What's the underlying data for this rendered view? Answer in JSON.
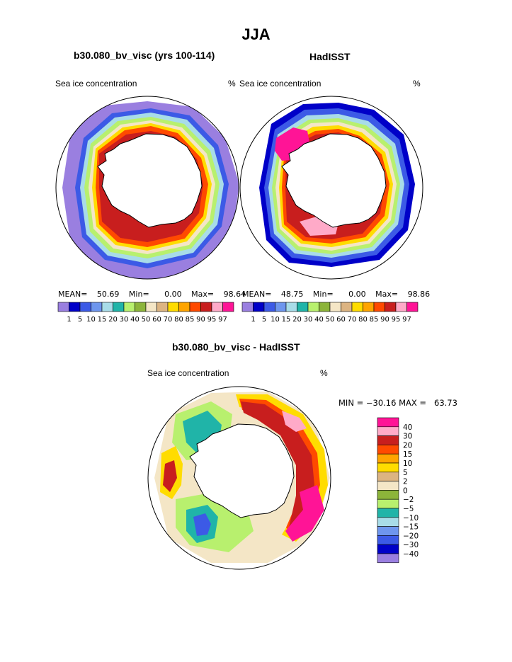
{
  "page": {
    "title": "JJA",
    "left_panel": {
      "case_label": "b30.080_bv_visc (yrs 100-114)",
      "variable": "Sea ice concentration",
      "units": "%",
      "stats": {
        "mean_label": "MEAN=",
        "mean": "50.69",
        "min_label": "Min=",
        "min": "0.00",
        "max_label": "Max=",
        "max": "98.64"
      }
    },
    "right_panel": {
      "case_label": "HadISST",
      "variable": "Sea ice concentration",
      "units": "%",
      "stats": {
        "mean_label": "MEAN=",
        "mean": "48.75",
        "min_label": "Min=",
        "min": "0.00",
        "max_label": "Max=",
        "max": "98.86"
      }
    },
    "diff_panel": {
      "case_label": "b30.080_bv_visc - HadISST",
      "variable": "Sea ice concentration",
      "units": "%",
      "minmax_text": "MIN = −30.16 MAX =   63.73"
    }
  },
  "chart_data": [
    {
      "type": "polar-contour-map",
      "title": "b30.080_bv_visc (yrs 100-114)",
      "variable": "Sea ice concentration (%)",
      "levels": [
        "1",
        "5",
        "10",
        "15",
        "20",
        "30",
        "40",
        "50",
        "60",
        "70",
        "80",
        "85",
        "90",
        "95",
        "97"
      ],
      "colors": [
        "#9a7fe0",
        "#0000c8",
        "#3c5ae6",
        "#6e96ee",
        "#a8dce8",
        "#20b4a8",
        "#b8f06e",
        "#8cb43a",
        "#f4e6c6",
        "#dcb482",
        "#ffdc00",
        "#ffa400",
        "#ff4a00",
        "#c81e1e",
        "#ffaac8",
        "#ff1496"
      ],
      "stats": {
        "mean": 50.69,
        "min": 0.0,
        "max": 98.64
      }
    },
    {
      "type": "polar-contour-map",
      "title": "HadISST",
      "variable": "Sea ice concentration (%)",
      "levels": [
        "1",
        "5",
        "10",
        "15",
        "20",
        "30",
        "40",
        "50",
        "60",
        "70",
        "80",
        "85",
        "90",
        "95",
        "97"
      ],
      "colors": [
        "#9a7fe0",
        "#0000c8",
        "#3c5ae6",
        "#6e96ee",
        "#a8dce8",
        "#20b4a8",
        "#b8f06e",
        "#8cb43a",
        "#f4e6c6",
        "#dcb482",
        "#ffdc00",
        "#ffa400",
        "#ff4a00",
        "#c81e1e",
        "#ffaac8",
        "#ff1496"
      ],
      "stats": {
        "mean": 48.75,
        "min": 0.0,
        "max": 98.86
      }
    },
    {
      "type": "polar-contour-map",
      "title": "b30.080_bv_visc - HadISST",
      "variable": "Sea ice concentration difference (%)",
      "levels": [
        "40",
        "30",
        "20",
        "15",
        "10",
        "5",
        "2",
        "0",
        "−2",
        "−5",
        "−10",
        "−15",
        "−20",
        "−30",
        "−40"
      ],
      "colors": [
        "#ff1496",
        "#ffaac8",
        "#c81e1e",
        "#ff4a00",
        "#ffa400",
        "#ffdc00",
        "#dcb482",
        "#f4e6c6",
        "#8cb43a",
        "#b8f06e",
        "#20b4a8",
        "#a8dce8",
        "#6e96ee",
        "#3c5ae6",
        "#0000c8",
        "#9a7fe0"
      ],
      "stats": {
        "min": -30.16,
        "max": 63.73
      }
    }
  ]
}
